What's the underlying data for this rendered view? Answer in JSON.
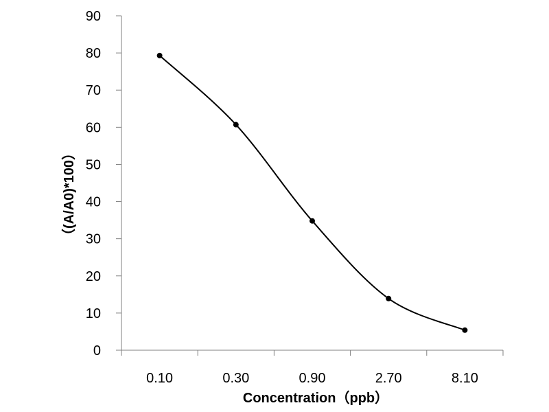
{
  "chart_data": {
    "type": "line",
    "title": "",
    "xlabel": "Concentration（ppb）",
    "ylabel": "（(A/A0)*100）",
    "categories": [
      "0.10",
      "0.30",
      "0.90",
      "2.70",
      "8.10"
    ],
    "series": [
      {
        "values": [
          79.3,
          60.7,
          34.8,
          13.9,
          5.4
        ]
      }
    ],
    "ylim": [
      0,
      90
    ],
    "yticks": [
      0,
      10,
      20,
      30,
      40,
      50,
      60,
      70,
      80,
      90
    ],
    "grid": false,
    "legend": "none",
    "smooth": true,
    "line_color": "#000000",
    "marker_color": "#000000"
  }
}
